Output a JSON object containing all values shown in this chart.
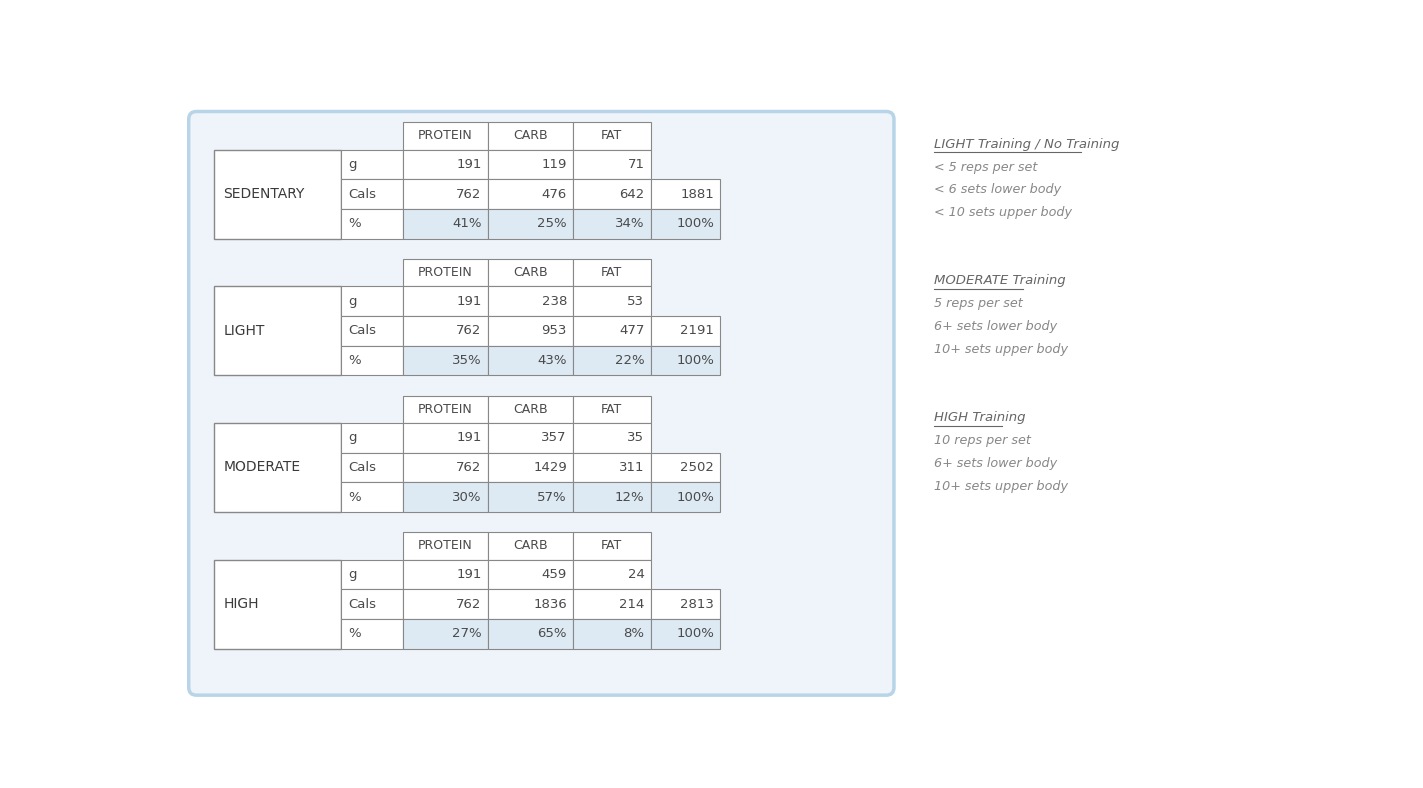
{
  "background_color": "#ffffff",
  "outer_border_color": "#b8d4e8",
  "outer_fill_color": "#eef4f9",
  "row_bg_white": "#ffffff",
  "row_bg_blue": "#ddeaf4",
  "sections": [
    {
      "label": "SEDENTARY",
      "rows": [
        {
          "unit": "g",
          "protein": "191",
          "carb": "119",
          "fat": "71",
          "total": ""
        },
        {
          "unit": "Cals",
          "protein": "762",
          "carb": "476",
          "fat": "642",
          "total": "1881"
        },
        {
          "unit": "%",
          "protein": "41%",
          "carb": "25%",
          "fat": "34%",
          "total": "100%"
        }
      ]
    },
    {
      "label": "LIGHT",
      "rows": [
        {
          "unit": "g",
          "protein": "191",
          "carb": "238",
          "fat": "53",
          "total": ""
        },
        {
          "unit": "Cals",
          "protein": "762",
          "carb": "953",
          "fat": "477",
          "total": "2191"
        },
        {
          "unit": "%",
          "protein": "35%",
          "carb": "43%",
          "fat": "22%",
          "total": "100%"
        }
      ]
    },
    {
      "label": "MODERATE",
      "rows": [
        {
          "unit": "g",
          "protein": "191",
          "carb": "357",
          "fat": "35",
          "total": ""
        },
        {
          "unit": "Cals",
          "protein": "762",
          "carb": "1429",
          "fat": "311",
          "total": "2502"
        },
        {
          "unit": "%",
          "protein": "30%",
          "carb": "57%",
          "fat": "12%",
          "total": "100%"
        }
      ]
    },
    {
      "label": "HIGH",
      "rows": [
        {
          "unit": "g",
          "protein": "191",
          "carb": "459",
          "fat": "24",
          "total": ""
        },
        {
          "unit": "Cals",
          "protein": "762",
          "carb": "1836",
          "fat": "214",
          "total": "2813"
        },
        {
          "unit": "%",
          "protein": "27%",
          "carb": "65%",
          "fat": "8%",
          "total": "100%"
        }
      ]
    }
  ],
  "side_notes": [
    {
      "title": "LIGHT Training / No Training",
      "lines": [
        "< 5 reps per set",
        "< 6 sets lower body",
        "< 10 sets upper body"
      ]
    },
    {
      "title": "MODERATE Training",
      "lines": [
        "5 reps per set",
        "6+ sets lower body",
        "10+ sets upper body"
      ]
    },
    {
      "title": "HIGH Training",
      "lines": [
        "10 reps per set",
        "6+ sets lower body",
        "10+ sets upper body"
      ]
    }
  ],
  "col_headers": [
    "PROTEIN",
    "CARB",
    "FAT"
  ],
  "text_color": "#4a4a4a",
  "label_color": "#3a3a3a",
  "side_title_color": "#666666",
  "side_text_color": "#888888"
}
